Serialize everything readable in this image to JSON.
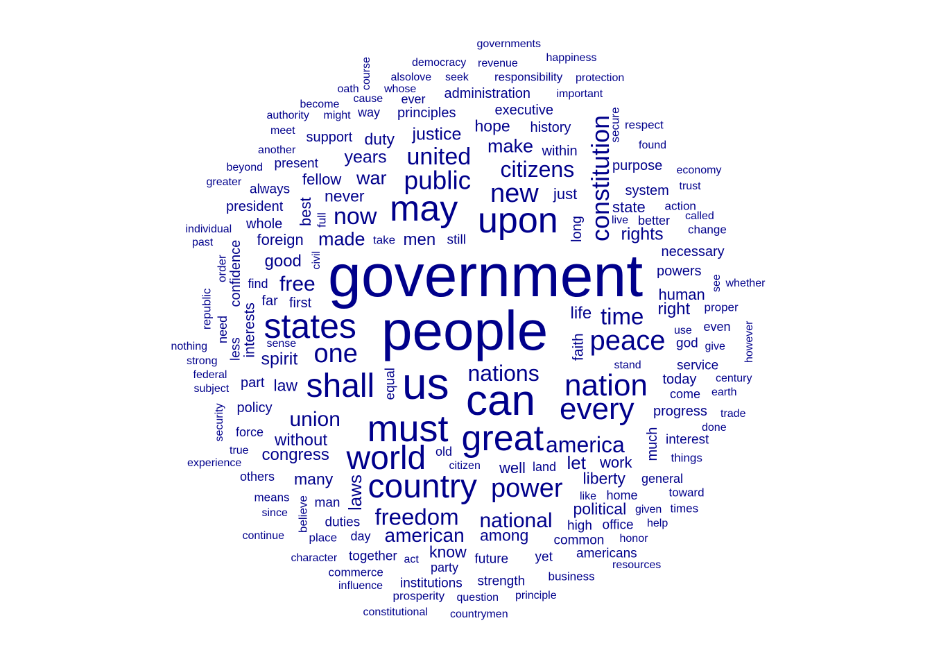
{
  "cloud": {
    "color": "#00008B",
    "words": [
      {
        "text": "government",
        "freq": 100
      },
      {
        "text": "people",
        "freq": 94
      },
      {
        "text": "us",
        "freq": 78
      },
      {
        "text": "can",
        "freq": 75
      },
      {
        "text": "must",
        "freq": 67
      },
      {
        "text": "may",
        "freq": 62
      },
      {
        "text": "upon",
        "freq": 62
      },
      {
        "text": "great",
        "freq": 62
      },
      {
        "text": "states",
        "freq": 60
      },
      {
        "text": "country",
        "freq": 58
      },
      {
        "text": "world",
        "freq": 58
      },
      {
        "text": "shall",
        "freq": 57
      },
      {
        "text": "nation",
        "freq": 53
      },
      {
        "text": "every",
        "freq": 52
      },
      {
        "text": "peace",
        "freq": 48
      },
      {
        "text": "new",
        "freq": 46
      },
      {
        "text": "one",
        "freq": 45
      },
      {
        "text": "power",
        "freq": 45
      },
      {
        "text": "public",
        "freq": 44
      },
      {
        "text": "constitution",
        "freq": 43
      },
      {
        "text": "now",
        "freq": 42
      },
      {
        "text": "united",
        "freq": 41
      },
      {
        "text": "freedom",
        "freq": 40
      },
      {
        "text": "time",
        "freq": 40
      },
      {
        "text": "citizens",
        "freq": 40
      },
      {
        "text": "nations",
        "freq": 38
      },
      {
        "text": "america",
        "freq": 38
      },
      {
        "text": "union",
        "freq": 36
      },
      {
        "text": "national",
        "freq": 35
      },
      {
        "text": "free",
        "freq": 34
      },
      {
        "text": "american",
        "freq": 33
      },
      {
        "text": "made",
        "freq": 32
      },
      {
        "text": "war",
        "freq": 32
      },
      {
        "text": "make",
        "freq": 32
      },
      {
        "text": "let",
        "freq": 31
      },
      {
        "text": "laws",
        "freq": 31
      },
      {
        "text": "spirit",
        "freq": 30
      },
      {
        "text": "years",
        "freq": 30
      },
      {
        "text": "justice",
        "freq": 30
      },
      {
        "text": "rights",
        "freq": 30
      },
      {
        "text": "congress",
        "freq": 29
      },
      {
        "text": "without",
        "freq": 29
      },
      {
        "text": "good",
        "freq": 29
      },
      {
        "text": "men",
        "freq": 29
      },
      {
        "text": "life",
        "freq": 28
      },
      {
        "text": "right",
        "freq": 28
      },
      {
        "text": "liberty",
        "freq": 28
      },
      {
        "text": "political",
        "freq": 28
      },
      {
        "text": "duty",
        "freq": 28
      },
      {
        "text": "never",
        "freq": 27
      },
      {
        "text": "law",
        "freq": 27
      },
      {
        "text": "many",
        "freq": 27
      },
      {
        "text": "hope",
        "freq": 27
      },
      {
        "text": "among",
        "freq": 27
      },
      {
        "text": "know",
        "freq": 27
      },
      {
        "text": "best",
        "freq": 27
      },
      {
        "text": "well",
        "freq": 26
      },
      {
        "text": "foreign",
        "freq": 26
      },
      {
        "text": "work",
        "freq": 26
      },
      {
        "text": "fellow",
        "freq": 26
      },
      {
        "text": "state",
        "freq": 26
      },
      {
        "text": "just",
        "freq": 25
      },
      {
        "text": "human",
        "freq": 25
      },
      {
        "text": "faith",
        "freq": 25
      },
      {
        "text": "interests",
        "freq": 25
      },
      {
        "text": "long",
        "freq": 25
      },
      {
        "text": "much",
        "freq": 25
      },
      {
        "text": "today",
        "freq": 25
      },
      {
        "text": "support",
        "freq": 24
      },
      {
        "text": "history",
        "freq": 24
      },
      {
        "text": "principles",
        "freq": 24
      },
      {
        "text": "executive",
        "freq": 24
      },
      {
        "text": "administration",
        "freq": 24
      },
      {
        "text": "within",
        "freq": 23
      },
      {
        "text": "purpose",
        "freq": 23
      },
      {
        "text": "system",
        "freq": 23
      },
      {
        "text": "president",
        "freq": 23
      },
      {
        "text": "whole",
        "freq": 23
      },
      {
        "text": "necessary",
        "freq": 23
      },
      {
        "text": "powers",
        "freq": 23
      },
      {
        "text": "first",
        "freq": 23
      },
      {
        "text": "far",
        "freq": 23
      },
      {
        "text": "confidence",
        "freq": 23
      },
      {
        "text": "part",
        "freq": 23
      },
      {
        "text": "policy",
        "freq": 23
      },
      {
        "text": "progress",
        "freq": 23
      },
      {
        "text": "interest",
        "freq": 22
      },
      {
        "text": "service",
        "freq": 22
      },
      {
        "text": "god",
        "freq": 22
      },
      {
        "text": "duties",
        "freq": 22
      },
      {
        "text": "future",
        "freq": 22
      },
      {
        "text": "common",
        "freq": 22
      },
      {
        "text": "high",
        "freq": 22
      },
      {
        "text": "office",
        "freq": 22
      },
      {
        "text": "yet",
        "freq": 22
      },
      {
        "text": "man",
        "freq": 22
      },
      {
        "text": "still",
        "freq": 21
      },
      {
        "text": "present",
        "freq": 21
      },
      {
        "text": "always",
        "freq": 21
      },
      {
        "text": "less",
        "freq": 21
      },
      {
        "text": "equal",
        "freq": 21
      },
      {
        "text": "together",
        "freq": 21
      },
      {
        "text": "strength",
        "freq": 21
      },
      {
        "text": "institutions",
        "freq": 21
      },
      {
        "text": "americans",
        "freq": 21
      },
      {
        "text": "general",
        "freq": 21
      },
      {
        "text": "come",
        "freq": 21
      },
      {
        "text": "force",
        "freq": 21
      },
      {
        "text": "others",
        "freq": 21
      },
      {
        "text": "day",
        "freq": 21
      },
      {
        "text": "party",
        "freq": 21
      },
      {
        "text": "way",
        "freq": 20
      },
      {
        "text": "ever",
        "freq": 20
      },
      {
        "text": "find",
        "freq": 20
      },
      {
        "text": "old",
        "freq": 20
      },
      {
        "text": "home",
        "freq": 20
      },
      {
        "text": "land",
        "freq": 20
      },
      {
        "text": "need",
        "freq": 20
      },
      {
        "text": "even",
        "freq": 20
      },
      {
        "text": "better",
        "freq": 20
      },
      {
        "text": "action",
        "freq": 20
      },
      {
        "text": "secure",
        "freq": 20
      },
      {
        "text": "full",
        "freq": 20
      },
      {
        "text": "republic",
        "freq": 20
      },
      {
        "text": "order",
        "freq": 20
      },
      {
        "text": "things",
        "freq": 20
      },
      {
        "text": "proper",
        "freq": 20
      },
      {
        "text": "toward",
        "freq": 20
      },
      {
        "text": "place",
        "freq": 20
      },
      {
        "text": "prosperity",
        "freq": 20
      },
      {
        "text": "business",
        "freq": 20
      },
      {
        "text": "take",
        "freq": 20
      },
      {
        "text": "means",
        "freq": 20
      },
      {
        "text": "times",
        "freq": 20
      },
      {
        "text": "respect",
        "freq": 20
      },
      {
        "text": "commerce",
        "freq": 20
      },
      {
        "text": "believe",
        "freq": 20
      },
      {
        "text": "change",
        "freq": 20
      },
      {
        "text": "responsibility",
        "freq": 20
      },
      {
        "text": "trust",
        "freq": 19
      },
      {
        "text": "found",
        "freq": 19
      },
      {
        "text": "economy",
        "freq": 19
      },
      {
        "text": "governments",
        "freq": 19
      },
      {
        "text": "happiness",
        "freq": 19
      },
      {
        "text": "protection",
        "freq": 19
      },
      {
        "text": "important",
        "freq": 19
      },
      {
        "text": "revenue",
        "freq": 19
      },
      {
        "text": "democracy",
        "freq": 19
      },
      {
        "text": "seek",
        "freq": 19
      },
      {
        "text": "alsolove",
        "freq": 19
      },
      {
        "text": "whose",
        "freq": 19
      },
      {
        "text": "oath",
        "freq": 19
      },
      {
        "text": "cause",
        "freq": 19
      },
      {
        "text": "course",
        "freq": 19
      },
      {
        "text": "become",
        "freq": 19
      },
      {
        "text": "might",
        "freq": 19
      },
      {
        "text": "authority",
        "freq": 19
      },
      {
        "text": "meet",
        "freq": 19
      },
      {
        "text": "another",
        "freq": 19
      },
      {
        "text": "beyond",
        "freq": 19
      },
      {
        "text": "greater",
        "freq": 19
      },
      {
        "text": "individual",
        "freq": 19
      },
      {
        "text": "past",
        "freq": 19
      },
      {
        "text": "civil",
        "freq": 19
      },
      {
        "text": "called",
        "freq": 19
      },
      {
        "text": "live",
        "freq": 19
      },
      {
        "text": "see",
        "freq": 19
      },
      {
        "text": "whether",
        "freq": 19
      },
      {
        "text": "however",
        "freq": 19
      },
      {
        "text": "use",
        "freq": 19
      },
      {
        "text": "give",
        "freq": 19
      },
      {
        "text": "sense",
        "freq": 19
      },
      {
        "text": "nothing",
        "freq": 19
      },
      {
        "text": "strong",
        "freq": 19
      },
      {
        "text": "federal",
        "freq": 19
      },
      {
        "text": "subject",
        "freq": 19
      },
      {
        "text": "security",
        "freq": 19
      },
      {
        "text": "true",
        "freq": 19
      },
      {
        "text": "experience",
        "freq": 19
      },
      {
        "text": "stand",
        "freq": 19
      },
      {
        "text": "century",
        "freq": 19
      },
      {
        "text": "earth",
        "freq": 19
      },
      {
        "text": "trade",
        "freq": 19
      },
      {
        "text": "done",
        "freq": 19
      },
      {
        "text": "citizen",
        "freq": 19
      },
      {
        "text": "like",
        "freq": 19
      },
      {
        "text": "given",
        "freq": 19
      },
      {
        "text": "help",
        "freq": 19
      },
      {
        "text": "honor",
        "freq": 19
      },
      {
        "text": "since",
        "freq": 19
      },
      {
        "text": "continue",
        "freq": 19
      },
      {
        "text": "character",
        "freq": 19
      },
      {
        "text": "act",
        "freq": 19
      },
      {
        "text": "resources",
        "freq": 19
      },
      {
        "text": "influence",
        "freq": 19
      },
      {
        "text": "question",
        "freq": 19
      },
      {
        "text": "principle",
        "freq": 19
      },
      {
        "text": "constitutional",
        "freq": 19
      },
      {
        "text": "countrymen",
        "freq": 19
      }
    ]
  }
}
